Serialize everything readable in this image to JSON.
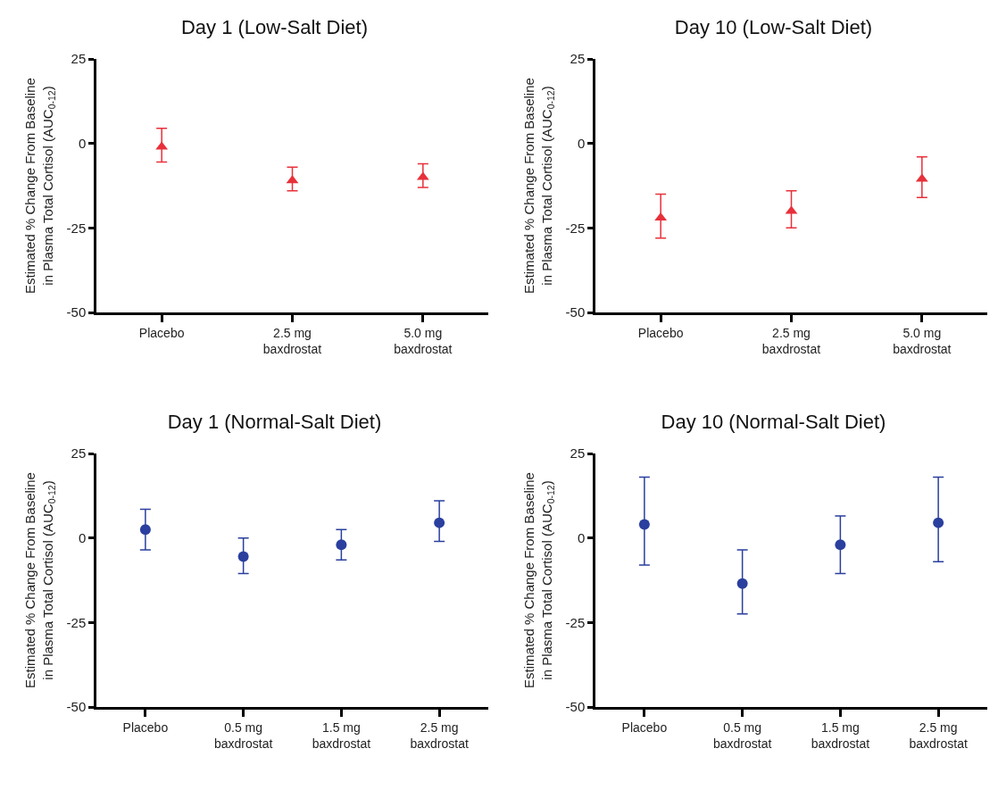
{
  "chart_data": [
    {
      "type": "scatter",
      "title": "Day 1 (Low-Salt Diet)",
      "ylabel": "Estimated % Change From Baseline\nin Plasma Total Cortisol (AUC$_{0-12}$)",
      "categories": [
        "Placebo",
        "2.5 mg\nbaxdrostat",
        "5.0 mg\nbaxdrostat"
      ],
      "series": [
        {
          "color": "#e8303a",
          "values": [
            -1,
            -11,
            -10
          ],
          "errors": [
            [
              -5.5,
              4.5
            ],
            [
              -14,
              -7
            ],
            [
              -13,
              -6
            ]
          ]
        }
      ],
      "ylim": [
        -50,
        25
      ],
      "yticks": [
        -50,
        -25,
        0,
        25
      ],
      "marker": "triangle",
      "grid": false
    },
    {
      "type": "scatter",
      "title": "Day 10 (Low-Salt Diet)",
      "ylabel": "Estimated % Change From Baseline\nin Plasma Total Cortisol (AUC$_{0-12}$)",
      "categories": [
        "Placebo",
        "2.5 mg\nbaxdrostat",
        "5.0 mg\nbaxdrostat"
      ],
      "series": [
        {
          "color": "#e8303a",
          "values": [
            -22,
            -20,
            -10.5
          ],
          "errors": [
            [
              -28,
              -15
            ],
            [
              -25,
              -14
            ],
            [
              -16,
              -4
            ]
          ]
        }
      ],
      "ylim": [
        -50,
        25
      ],
      "yticks": [
        -50,
        -25,
        0,
        25
      ],
      "marker": "triangle",
      "grid": false
    },
    {
      "type": "scatter",
      "title": "Day 1 (Normal-Salt Diet)",
      "ylabel": "Estimated % Change From Baseline\nin Plasma Total Cortisol (AUC$_{0-12}$)",
      "categories": [
        "Placebo",
        "0.5 mg\nbaxdrostat",
        "1.5 mg\nbaxdrostat",
        "2.5 mg\nbaxdrostat"
      ],
      "series": [
        {
          "color": "#2a3f9e",
          "values": [
            2.5,
            -5.5,
            -2,
            4.5
          ],
          "errors": [
            [
              -3.5,
              8.5
            ],
            [
              -10.5,
              0
            ],
            [
              -6.5,
              2.5
            ],
            [
              -1,
              11
            ]
          ]
        }
      ],
      "ylim": [
        -50,
        25
      ],
      "yticks": [
        -50,
        -25,
        0,
        25
      ],
      "marker": "circle",
      "grid": false
    },
    {
      "type": "scatter",
      "title": "Day 10 (Normal-Salt Diet)",
      "ylabel": "Estimated % Change From Baseline\nin Plasma Total Cortisol (AUC$_{0-12}$)",
      "categories": [
        "Placebo",
        "0.5 mg\nbaxdrostat",
        "1.5 mg\nbaxdrostat",
        "2.5 mg\nbaxdrostat"
      ],
      "series": [
        {
          "color": "#2a3f9e",
          "values": [
            4,
            -13.5,
            -2,
            4.5
          ],
          "errors": [
            [
              -8,
              18
            ],
            [
              -22.5,
              -3.5
            ],
            [
              -10.5,
              6.5
            ],
            [
              -7,
              18
            ]
          ]
        }
      ],
      "ylim": [
        -50,
        25
      ],
      "yticks": [
        -50,
        -25,
        0,
        25
      ],
      "marker": "circle",
      "grid": false
    }
  ]
}
